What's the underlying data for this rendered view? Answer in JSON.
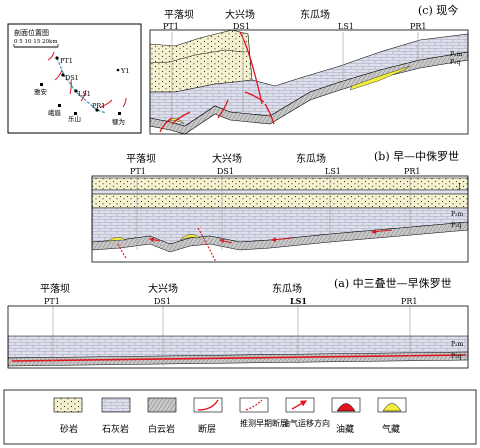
{
  "panels": {
    "c": {
      "title": "(c) 现今",
      "places": [
        "平落坝",
        "大兴场",
        "东瓜场"
      ],
      "wells": [
        "PT1",
        "DS1",
        "LS1",
        "PR1"
      ],
      "formations": [
        "P₂m",
        "P₂q"
      ]
    },
    "b": {
      "title": "(b) 早—中侏罗世",
      "places": [
        "平落坝",
        "大兴场",
        "东瓜场"
      ],
      "wells": [
        "PT1",
        "DS1",
        "LS1",
        "PR1"
      ],
      "formations": [
        "J",
        "P₂m",
        "P₂q"
      ]
    },
    "a": {
      "title": "(a) 中三叠世—早侏罗世",
      "places": [
        "平落坝",
        "大兴场",
        "东瓜场"
      ],
      "wells": [
        "PT1",
        "DS1",
        "LS1",
        "PR1"
      ],
      "formations": [
        "P₂m",
        "P₂q"
      ]
    }
  },
  "location_map": {
    "title": "剖面位置图",
    "scale": "0 5 10 15 20km",
    "wells": [
      "PT1",
      "DS1",
      "LS1",
      "PR1",
      "Y1"
    ],
    "cities": [
      "雅安",
      "峨眉",
      "乐山",
      "犍为"
    ]
  },
  "legend": [
    {
      "label": "砂岩",
      "icon": "sandstone-pattern"
    },
    {
      "label": "石灰岩",
      "icon": "limestone-pattern"
    },
    {
      "label": "白云岩",
      "icon": "dolomite-pattern"
    },
    {
      "label": "断层",
      "icon": "fault-line"
    },
    {
      "label": "推测早期断层",
      "icon": "inferred-fault-line"
    },
    {
      "label": "油气运移方向",
      "icon": "migration-arrow"
    },
    {
      "label": "油藏",
      "icon": "oil-reservoir"
    },
    {
      "label": "气藏",
      "icon": "gas-reservoir"
    }
  ],
  "colors": {
    "sandstone": "#f6f1cf",
    "limestone": "#dfe0ee",
    "dolomite": "#c8c8c8",
    "fault": "#e0141e",
    "gas": "#f2ec3c",
    "oil": "#e0141e"
  }
}
